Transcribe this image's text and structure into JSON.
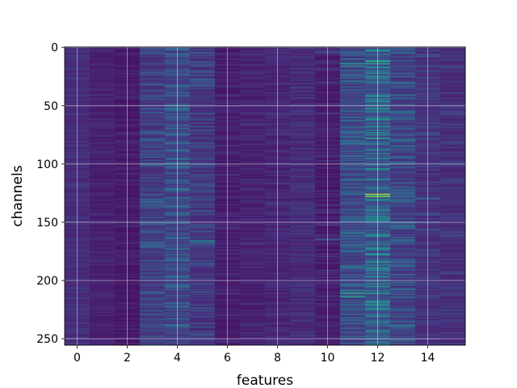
{
  "chart_data": {
    "type": "heatmap",
    "title": "",
    "xlabel": "features",
    "ylabel": "channels",
    "x_range": [
      -0.5,
      15.5
    ],
    "y_range": [
      255.5,
      -0.5
    ],
    "y_inverted": true,
    "x_ticks": [
      0,
      2,
      4,
      6,
      8,
      10,
      12,
      14
    ],
    "y_ticks": [
      0,
      50,
      100,
      150,
      200,
      250
    ],
    "n_features": 16,
    "n_channels": 256,
    "colormap": "viridis",
    "colormap_stops": [
      "#440154",
      "#482878",
      "#3e4989",
      "#31688e",
      "#26828e",
      "#1f9e89",
      "#35b779",
      "#6ece58",
      "#b5de2b",
      "#fde725"
    ],
    "grid": true,
    "grid_color": "#ffffff",
    "feature_base_level": [
      0.1,
      0.07,
      0.05,
      0.13,
      0.16,
      0.11,
      0.06,
      0.07,
      0.08,
      0.09,
      0.05,
      0.16,
      0.2,
      0.14,
      0.11,
      0.1
    ],
    "feature_variation": [
      0.05,
      0.04,
      0.04,
      0.12,
      0.14,
      0.11,
      0.05,
      0.05,
      0.05,
      0.06,
      0.06,
      0.15,
      0.2,
      0.14,
      0.08,
      0.07
    ],
    "highlights": [
      {
        "feature": 11,
        "channel": 14,
        "value": 0.55
      },
      {
        "feature": 11,
        "channel": 16,
        "value": 0.48
      },
      {
        "feature": 11,
        "channel": 29,
        "value": 0.42
      },
      {
        "feature": 12,
        "channel": 12,
        "value": 0.62
      },
      {
        "feature": 12,
        "channel": 14,
        "value": 0.58
      },
      {
        "feature": 12,
        "channel": 20,
        "value": 0.4
      },
      {
        "feature": 12,
        "channel": 29,
        "value": 0.35
      },
      {
        "feature": 12,
        "channel": 65,
        "value": 0.4
      },
      {
        "feature": 12,
        "channel": 78,
        "value": 0.6
      },
      {
        "feature": 12,
        "channel": 105,
        "value": 0.45
      },
      {
        "feature": 12,
        "channel": 126,
        "value": 0.85
      },
      {
        "feature": 12,
        "channel": 128,
        "value": 0.8
      },
      {
        "feature": 12,
        "channel": 184,
        "value": 0.55
      },
      {
        "feature": 12,
        "channel": 194,
        "value": 0.45
      },
      {
        "feature": 12,
        "channel": 211,
        "value": 0.55
      },
      {
        "feature": 11,
        "channel": 211,
        "value": 0.6
      },
      {
        "feature": 11,
        "channel": 214,
        "value": 0.58
      },
      {
        "feature": 11,
        "channel": 232,
        "value": 0.35
      },
      {
        "feature": 5,
        "channel": 166,
        "value": 0.48
      },
      {
        "feature": 4,
        "channel": 129,
        "value": 0.4
      },
      {
        "feature": 4,
        "channel": 67,
        "value": 0.32
      },
      {
        "feature": 3,
        "channel": 94,
        "value": 0.35
      },
      {
        "feature": 3,
        "channel": 170,
        "value": 0.35
      },
      {
        "feature": 5,
        "channel": 33,
        "value": 0.35
      },
      {
        "feature": 10,
        "channel": 4,
        "value": 0.32
      },
      {
        "feature": 10,
        "channel": 165,
        "value": 0.3
      },
      {
        "feature": 13,
        "channel": 120,
        "value": 0.35
      },
      {
        "feature": 14,
        "channel": 130,
        "value": 0.32
      },
      {
        "feature": 13,
        "channel": 150,
        "value": 0.3
      },
      {
        "feature": 11,
        "channel": 120,
        "value": 0.38
      },
      {
        "feature": 12,
        "channel": 248,
        "value": 0.38
      }
    ]
  }
}
